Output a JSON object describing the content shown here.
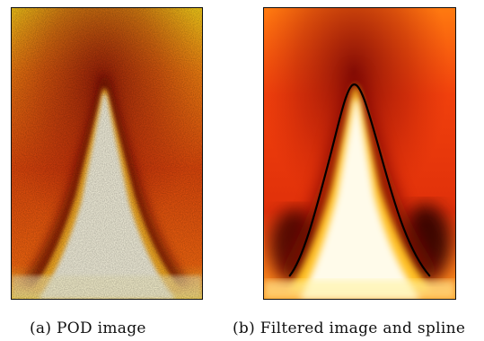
{
  "figure": {
    "panels": [
      {
        "caption": "(a) POD image",
        "image": "pod-heatmap-raw",
        "colormap": [
          "#fffff4",
          "#fff27a",
          "#ffc21a",
          "#ff7a10",
          "#e02a0a",
          "#7a0a06",
          "#2a0502"
        ]
      },
      {
        "caption": "(b) Filtered image and spline",
        "image": "pod-heatmap-filtered-with-spline",
        "spline_color": "#000000"
      }
    ]
  }
}
